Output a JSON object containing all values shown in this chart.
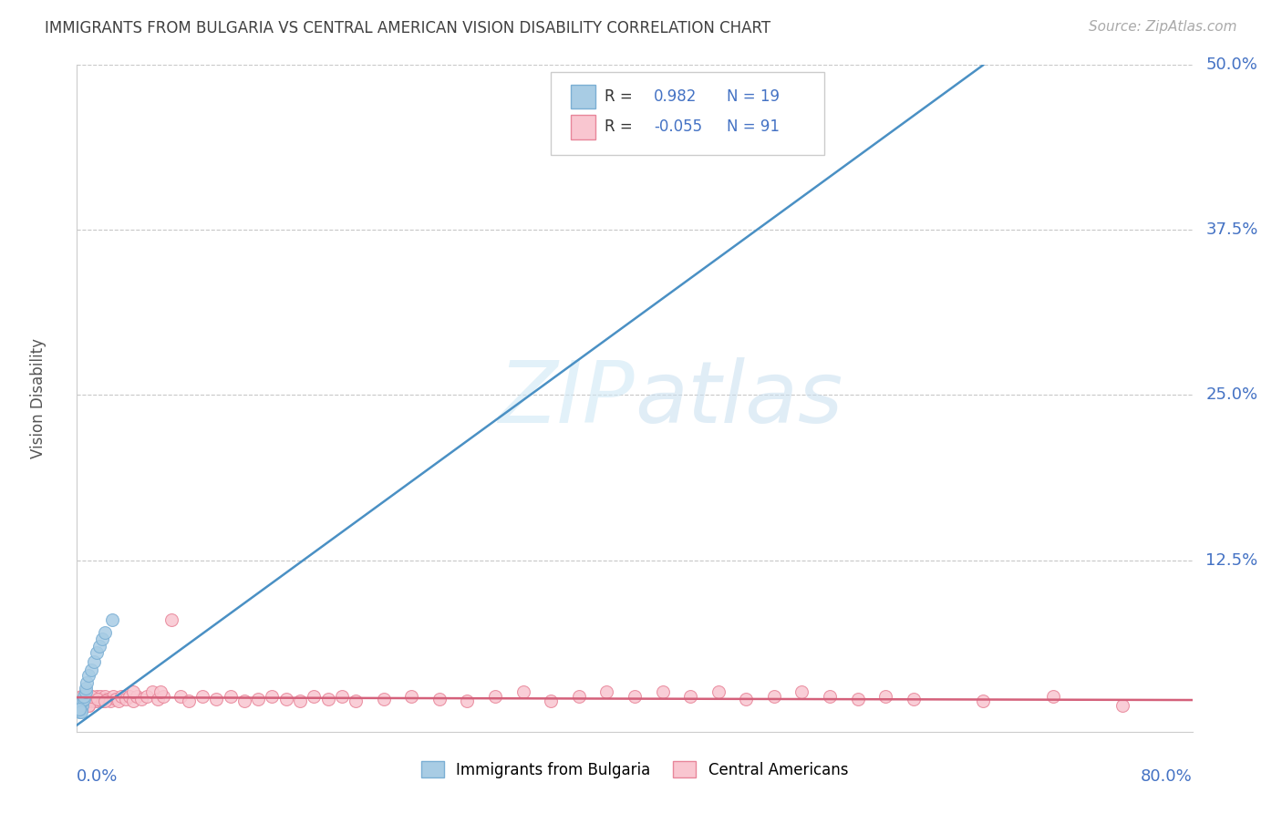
{
  "title": "IMMIGRANTS FROM BULGARIA VS CENTRAL AMERICAN VISION DISABILITY CORRELATION CHART",
  "source": "Source: ZipAtlas.com",
  "ylabel": "Vision Disability",
  "xlim": [
    0.0,
    0.8
  ],
  "ylim": [
    -0.005,
    0.5
  ],
  "ytick_vals": [
    0.0,
    0.125,
    0.25,
    0.375,
    0.5
  ],
  "ytick_labels": [
    "",
    "12.5%",
    "25.0%",
    "37.5%",
    "50.0%"
  ],
  "watermark": "ZIPatlas",
  "legend_blue_r_val": "0.982",
  "legend_blue_n": "N = 19",
  "legend_pink_r_val": "-0.055",
  "legend_pink_n": "N = 91",
  "blue_scatter_color": "#a8cce4",
  "blue_edge_color": "#7bafd4",
  "pink_scatter_color": "#f9c6d0",
  "pink_edge_color": "#e8869a",
  "trend_blue": "#4a90c4",
  "trend_pink": "#d4607a",
  "grid_color": "#c8c8c8",
  "bg_color": "#ffffff",
  "title_color": "#404040",
  "axis_label_color": "#4472c4",
  "bulgaria_x": [
    0.002,
    0.003,
    0.004,
    0.004,
    0.005,
    0.005,
    0.006,
    0.006,
    0.003,
    0.002,
    0.007,
    0.008,
    0.01,
    0.012,
    0.014,
    0.016,
    0.018,
    0.02,
    0.025
  ],
  "bulgaria_y": [
    0.01,
    0.012,
    0.015,
    0.018,
    0.02,
    0.022,
    0.025,
    0.028,
    0.01,
    0.012,
    0.032,
    0.038,
    0.042,
    0.048,
    0.055,
    0.06,
    0.065,
    0.07,
    0.08
  ],
  "central_x": [
    0.001,
    0.002,
    0.002,
    0.003,
    0.003,
    0.004,
    0.004,
    0.005,
    0.005,
    0.006,
    0.006,
    0.007,
    0.007,
    0.008,
    0.008,
    0.009,
    0.009,
    0.01,
    0.01,
    0.011,
    0.012,
    0.013,
    0.014,
    0.015,
    0.016,
    0.017,
    0.018,
    0.019,
    0.02,
    0.022,
    0.024,
    0.026,
    0.028,
    0.03,
    0.032,
    0.035,
    0.038,
    0.04,
    0.043,
    0.046,
    0.05,
    0.054,
    0.058,
    0.062,
    0.068,
    0.074,
    0.08,
    0.09,
    0.1,
    0.11,
    0.12,
    0.13,
    0.14,
    0.15,
    0.16,
    0.17,
    0.18,
    0.19,
    0.2,
    0.22,
    0.24,
    0.26,
    0.28,
    0.3,
    0.32,
    0.34,
    0.36,
    0.38,
    0.4,
    0.42,
    0.44,
    0.46,
    0.48,
    0.5,
    0.52,
    0.54,
    0.56,
    0.58,
    0.6,
    0.65,
    0.7,
    0.75,
    0.003,
    0.004,
    0.006,
    0.008,
    0.01,
    0.015,
    0.02,
    0.04,
    0.06
  ],
  "central_y": [
    0.018,
    0.02,
    0.015,
    0.022,
    0.018,
    0.015,
    0.02,
    0.022,
    0.018,
    0.02,
    0.015,
    0.022,
    0.018,
    0.02,
    0.015,
    0.022,
    0.018,
    0.02,
    0.022,
    0.018,
    0.02,
    0.018,
    0.022,
    0.018,
    0.02,
    0.022,
    0.018,
    0.02,
    0.022,
    0.02,
    0.018,
    0.022,
    0.02,
    0.018,
    0.022,
    0.02,
    0.022,
    0.018,
    0.022,
    0.02,
    0.022,
    0.025,
    0.02,
    0.022,
    0.08,
    0.022,
    0.018,
    0.022,
    0.02,
    0.022,
    0.018,
    0.02,
    0.022,
    0.02,
    0.018,
    0.022,
    0.02,
    0.022,
    0.018,
    0.02,
    0.022,
    0.02,
    0.018,
    0.022,
    0.025,
    0.018,
    0.022,
    0.025,
    0.022,
    0.025,
    0.022,
    0.025,
    0.02,
    0.022,
    0.025,
    0.022,
    0.02,
    0.022,
    0.02,
    0.018,
    0.022,
    0.015,
    0.018,
    0.022,
    0.02,
    0.015,
    0.022,
    0.02,
    0.018,
    0.025,
    0.025
  ],
  "blue_trend_x": [
    0.0,
    0.65
  ],
  "blue_trend_y": [
    0.0,
    0.5
  ],
  "pink_trend_x": [
    0.0,
    0.8
  ],
  "pink_trend_y": [
    0.021,
    0.019
  ]
}
